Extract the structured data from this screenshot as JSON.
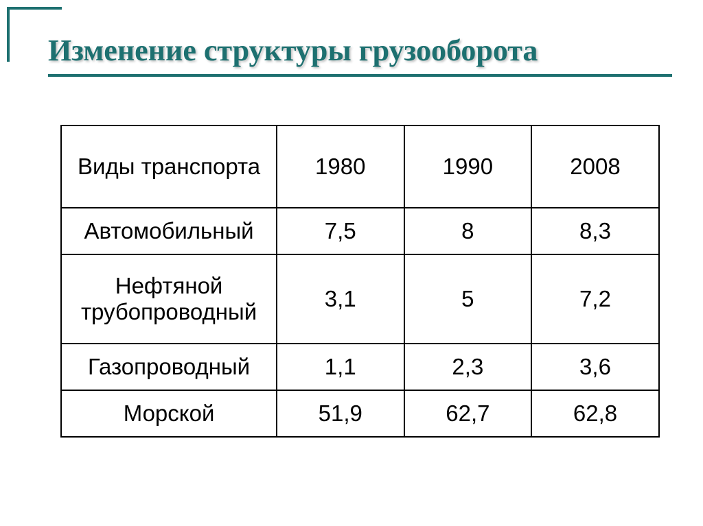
{
  "colors": {
    "accent": "#1d7070",
    "border": "#1d7070",
    "title": "#1d7070"
  },
  "title": "Изменение структуры грузооборота",
  "table": {
    "header": {
      "type_label": "Виды транспорта",
      "years": [
        "1980",
        "1990",
        "2008"
      ]
    },
    "rows": [
      {
        "label": "Автомобильный",
        "values": [
          "7,5",
          "8",
          "8,3"
        ]
      },
      {
        "label": "Нефтяной трубопроводный",
        "values": [
          "3,1",
          "5",
          "7,2"
        ]
      },
      {
        "label": "Газопроводный",
        "values": [
          "1,1",
          "2,3",
          "3,6"
        ]
      },
      {
        "label": "Морской",
        "values": [
          "51,9",
          "62,7",
          "62,8"
        ]
      }
    ]
  }
}
